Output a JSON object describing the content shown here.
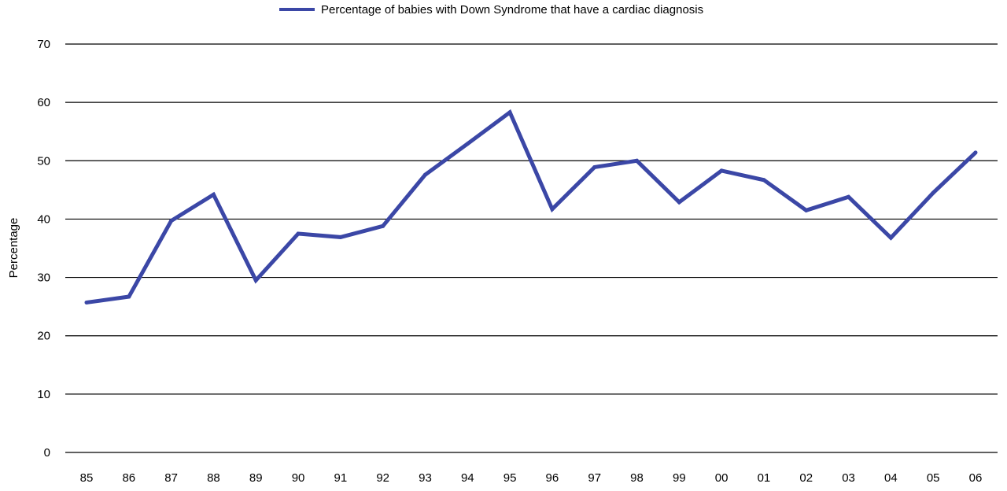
{
  "chart_data": {
    "type": "line",
    "title": "",
    "xlabel": "",
    "ylabel": "Percentage",
    "ylim": [
      0,
      70
    ],
    "y_ticks": [
      "0",
      "10",
      "20",
      "30",
      "40",
      "50",
      "60",
      "70"
    ],
    "grid": true,
    "legend_position": "top",
    "categories": [
      "85",
      "86",
      "87",
      "88",
      "89",
      "90",
      "91",
      "92",
      "93",
      "94",
      "95",
      "96",
      "97",
      "98",
      "99",
      "00",
      "01",
      "02",
      "03",
      "04",
      "05",
      "06"
    ],
    "series": [
      {
        "name": "Percentage of babies with Down Syndrome that have a cardiac diagnosis",
        "color": "#3b47a6",
        "values": [
          25.7,
          26.7,
          39.7,
          44.2,
          29.5,
          37.5,
          36.9,
          38.8,
          47.6,
          52.9,
          58.3,
          41.7,
          48.9,
          50.0,
          42.9,
          48.3,
          46.7,
          41.5,
          43.8,
          36.8,
          44.5,
          51.4
        ]
      }
    ]
  }
}
